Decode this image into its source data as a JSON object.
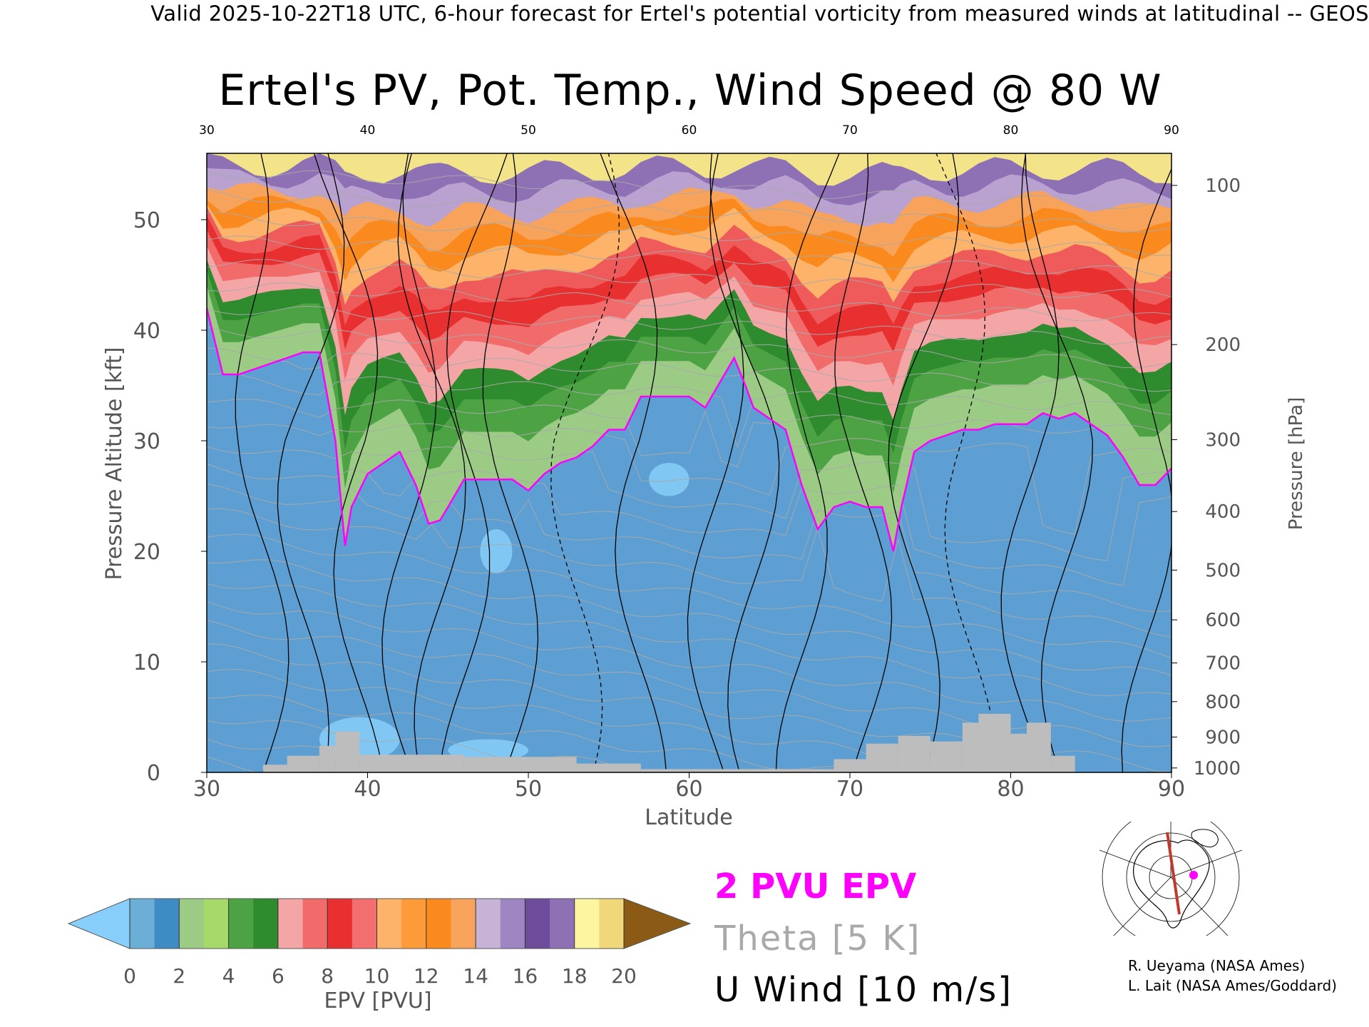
{
  "header": {
    "valid_text": "Valid 2025-10-22T18 UTC, 6-hour forecast for Ertel's potential vorticity from measured winds at latitudinal -- GEOS"
  },
  "chart_data": {
    "type": "heatmap",
    "title": "Ertel's PV, Pot. Temp., Wind Speed @ 80 W",
    "xlabel": "Latitude",
    "ylabel_left": "Pressure Altitude [kft]",
    "ylabel_right": "Pressure [hPa]",
    "xlim": [
      30,
      90
    ],
    "ylim": [
      0,
      56
    ],
    "x_ticks": [
      30,
      40,
      50,
      60,
      70,
      80,
      90
    ],
    "y_ticks_left": [
      0,
      10,
      20,
      30,
      40,
      50
    ],
    "y_ticks_right": [
      {
        "label": "100",
        "kft": 53.1
      },
      {
        "label": "200",
        "kft": 38.7
      },
      {
        "label": "300",
        "kft": 30.1
      },
      {
        "label": "400",
        "kft": 23.6
      },
      {
        "label": "500",
        "kft": 18.3
      },
      {
        "label": "600",
        "kft": 13.8
      },
      {
        "label": "700",
        "kft": 9.9
      },
      {
        "label": "800",
        "kft": 6.4
      },
      {
        "label": "900",
        "kft": 3.2
      },
      {
        "label": "1000",
        "kft": 0.4
      }
    ],
    "tropopause_2pvu_kft": {
      "lat": [
        30,
        31,
        32,
        33,
        34,
        35,
        36,
        37,
        38,
        38.6,
        39,
        40,
        41,
        42,
        43,
        43.8,
        44.5,
        45,
        46,
        47,
        48,
        49,
        50,
        51,
        52,
        53,
        54,
        55,
        56,
        57,
        58,
        59,
        60,
        61,
        62,
        62.8,
        63.5,
        64,
        65,
        66,
        67,
        68,
        69,
        70,
        71,
        72,
        72.7,
        73.2,
        74,
        75,
        76,
        77,
        78,
        79,
        80,
        81,
        82,
        83,
        84,
        85,
        86,
        87,
        88,
        89,
        90
      ],
      "kft": [
        42,
        36,
        36,
        36.5,
        37,
        37.5,
        38,
        38,
        30,
        20.5,
        24,
        27,
        28,
        29,
        26,
        22.5,
        22.8,
        24,
        26.5,
        26.5,
        26.5,
        26.5,
        25.5,
        27,
        28,
        28.5,
        29.5,
        31,
        31,
        34,
        34,
        34,
        34,
        33,
        35.5,
        37.5,
        35,
        33,
        32,
        31,
        26,
        22,
        24,
        24.5,
        24,
        24,
        20,
        24,
        29,
        30,
        30.5,
        31,
        31,
        31.5,
        31.5,
        31.5,
        32.5,
        32,
        32.5,
        31.5,
        30.5,
        28.5,
        26,
        26,
        27.5
      ]
    },
    "pv_colorbar": {
      "label": "EPV [PVU]",
      "tick_labels": [
        "0",
        "2",
        "4",
        "6",
        "8",
        "10",
        "12",
        "14",
        "16",
        "18",
        "20"
      ],
      "bin_edges": [
        0,
        1,
        2,
        3,
        4,
        5,
        6,
        7,
        8,
        9,
        10,
        11,
        12,
        13,
        14,
        15,
        16,
        17,
        18,
        19,
        20
      ],
      "under_color": "#87cefa",
      "over_color": "#8b5a14",
      "colors": [
        "#6baed6",
        "#3f8bc4",
        "#9ccb86",
        "#a6d96a",
        "#4da343",
        "#2e8b2e",
        "#f4a6a6",
        "#f26b6b",
        "#e83030",
        "#f36f6f",
        "#fdb46a",
        "#fd9a3a",
        "#fb8a1e",
        "#f7a35c",
        "#c7b3d6",
        "#9e86c2",
        "#6f4b9c",
        "#8e70b4",
        "#fdf5a0",
        "#f0d77a"
      ]
    },
    "legend": [
      {
        "label": "2 PVU EPV",
        "color": "#ff00ff"
      },
      {
        "label": "Theta [5 K]",
        "color": "#a9a9a9"
      },
      {
        "label": "U Wind [10 m/s]",
        "color": "#000000"
      }
    ],
    "theta_levels_K": [
      280,
      285,
      290,
      295,
      300,
      305,
      310,
      315,
      320,
      325,
      330,
      335,
      340,
      345,
      350,
      355,
      360,
      365,
      370,
      375,
      380,
      385,
      390,
      395,
      400,
      405,
      410
    ]
  },
  "credits": {
    "line1": "R. Ueyama (NASA Ames)",
    "line2": "L. Lait (NASA Ames/Goddard)"
  }
}
